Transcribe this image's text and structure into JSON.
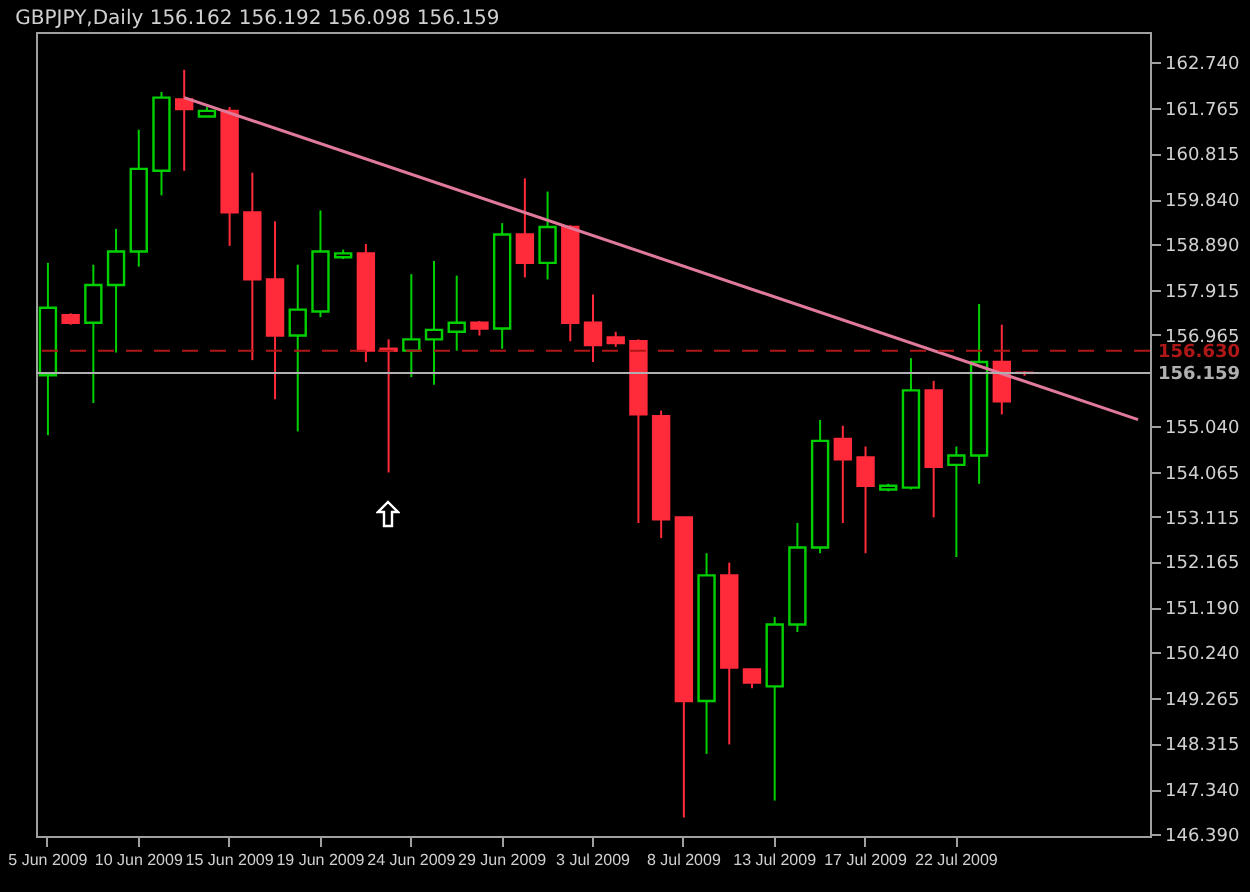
{
  "chart_data": {
    "type": "candlestick",
    "title": "GBPJPY,Daily 156.162 156.192 156.098 156.159",
    "categories": [
      "5 Jun 2009",
      null,
      null,
      null,
      "10 Jun 2009",
      null,
      null,
      null,
      "15 Jun 2009",
      null,
      null,
      null,
      "19 Jun 2009",
      null,
      null,
      null,
      "24 Jun 2009",
      null,
      null,
      null,
      "29 Jun 2009",
      null,
      null,
      null,
      "3 Jul 2009",
      null,
      null,
      null,
      "8 Jul 2009",
      null,
      null,
      null,
      "13 Jul 2009",
      null,
      null,
      null,
      "17 Jul 2009",
      null,
      null,
      null,
      "22 Jul 2009",
      null,
      null,
      null,
      null,
      null,
      null,
      null,
      null
    ],
    "ohlc": [
      [
        156.11,
        158.49,
        154.84,
        157.54
      ],
      [
        157.38,
        157.42,
        157.18,
        157.22
      ],
      [
        157.22,
        158.45,
        155.52,
        158.02
      ],
      [
        158.02,
        159.21,
        156.59,
        158.73
      ],
      [
        158.73,
        161.31,
        158.41,
        160.48
      ],
      [
        160.44,
        162.11,
        159.92,
        161.99
      ],
      [
        161.95,
        162.58,
        160.44,
        161.75
      ],
      [
        161.59,
        161.79,
        161.59,
        161.71
      ],
      [
        161.71,
        161.79,
        158.85,
        159.56
      ],
      [
        159.56,
        160.4,
        156.43,
        158.14
      ],
      [
        158.14,
        159.37,
        155.6,
        156.95
      ],
      [
        156.95,
        158.45,
        154.92,
        157.5
      ],
      [
        157.46,
        159.6,
        157.34,
        158.73
      ],
      [
        158.61,
        158.77,
        158.57,
        158.69
      ],
      [
        158.69,
        158.89,
        156.39,
        156.63
      ],
      [
        156.67,
        156.87,
        154.05,
        156.63
      ],
      [
        156.63,
        158.25,
        156.07,
        156.87
      ],
      [
        156.87,
        158.53,
        155.91,
        157.07
      ],
      [
        157.03,
        158.22,
        156.63,
        157.22
      ],
      [
        157.22,
        157.26,
        156.95,
        157.1
      ],
      [
        157.1,
        159.33,
        156.67,
        159.09
      ],
      [
        159.09,
        160.28,
        158.18,
        158.49
      ],
      [
        158.49,
        160.0,
        158.14,
        159.25
      ],
      [
        159.25,
        159.29,
        156.83,
        157.22
      ],
      [
        157.22,
        157.82,
        156.39,
        156.75
      ],
      [
        156.91,
        157.03,
        156.71,
        156.79
      ],
      [
        156.83,
        156.87,
        152.98,
        155.28
      ],
      [
        155.24,
        155.36,
        152.66,
        153.06
      ],
      [
        153.1,
        153.1,
        146.74,
        149.21
      ],
      [
        149.21,
        152.34,
        148.09,
        151.87
      ],
      [
        151.87,
        152.14,
        148.29,
        149.92
      ],
      [
        149.88,
        149.88,
        149.48,
        149.6
      ],
      [
        149.52,
        150.99,
        147.1,
        150.83
      ],
      [
        150.83,
        152.98,
        150.67,
        152.46
      ],
      [
        152.46,
        155.16,
        152.34,
        154.72
      ],
      [
        154.76,
        155.04,
        152.98,
        154.33
      ],
      [
        154.37,
        154.6,
        152.34,
        153.77
      ],
      [
        153.69,
        153.81,
        153.65,
        153.77
      ],
      [
        153.73,
        156.47,
        153.69,
        155.79
      ],
      [
        155.79,
        155.99,
        153.1,
        154.17
      ],
      [
        154.21,
        154.6,
        152.26,
        154.41
      ],
      [
        154.41,
        157.62,
        153.81,
        156.39
      ],
      [
        156.39,
        157.18,
        155.28,
        155.56
      ],
      [
        156.162,
        156.192,
        156.098,
        156.159
      ],
      null,
      null,
      null,
      null,
      null
    ],
    "colors": [
      "#00d000",
      "#ff2a3a",
      "#00d000",
      "#00d000",
      "#00d000",
      "#00d000",
      "#ff2a3a",
      "#00d000",
      "#ff2a3a",
      "#ff2a3a",
      "#ff2a3a",
      "#00d000",
      "#00d000",
      "#00d000",
      "#ff2a3a",
      "#ff2a3a",
      "#00d000",
      "#00d000",
      "#00d000",
      "#ff2a3a",
      "#00d000",
      "#ff2a3a",
      "#00d000",
      "#ff2a3a",
      "#ff2a3a",
      "#ff2a3a",
      "#ff2a3a",
      "#ff2a3a",
      "#ff2a3a",
      "#00d000",
      "#ff2a3a",
      "#ff2a3a",
      "#00d000",
      "#00d000",
      "#00d000",
      "#ff2a3a",
      "#ff2a3a",
      "#00d000",
      "#00d000",
      "#ff2a3a",
      "#00d000",
      "#00d000",
      "#ff2a3a",
      "#ff2a3a",
      null,
      null,
      null,
      null,
      null
    ],
    "series": [
      {
        "type": "line",
        "color": "#e07a9a",
        "values": [
          null,
          null,
          null,
          null,
          null,
          null,
          161.99,
          null,
          null,
          null,
          null,
          null,
          null,
          null,
          null,
          null,
          null,
          null,
          null,
          null,
          null,
          null,
          null,
          null,
          null,
          null,
          null,
          null,
          null,
          null,
          null,
          null,
          null,
          null,
          null,
          null,
          null,
          null,
          null,
          null,
          null,
          null,
          null,
          null,
          null,
          null,
          null,
          null,
          155.17
        ]
      }
    ],
    "ylim": [
      146.35,
      163.38
    ],
    "yticks": [
      {
        "value": 162.74,
        "label": "162.740"
      },
      {
        "value": 161.765,
        "label": "161.765"
      },
      {
        "value": 160.815,
        "label": "160.815"
      },
      {
        "value": 159.84,
        "label": "159.840"
      },
      {
        "value": 158.89,
        "label": "158.890"
      },
      {
        "value": 157.915,
        "label": "157.915"
      },
      {
        "value": 156.965,
        "label": "156.965"
      },
      {
        "value": 155.04,
        "label": "155.040"
      },
      {
        "value": 154.065,
        "label": "154.065"
      },
      {
        "value": 153.115,
        "label": "153.115"
      },
      {
        "value": 152.165,
        "label": "152.165"
      },
      {
        "value": 151.19,
        "label": "151.190"
      },
      {
        "value": 150.24,
        "label": "150.240"
      },
      {
        "value": 149.265,
        "label": "149.265"
      },
      {
        "value": 148.315,
        "label": "148.315"
      },
      {
        "value": 147.34,
        "label": "147.340"
      },
      {
        "value": 146.39,
        "label": "146.390"
      }
    ],
    "ref_lines": [
      {
        "axis": "y",
        "value": 156.63,
        "label": "156.630",
        "color": "#b01818",
        "line_style": "dashed"
      },
      {
        "axis": "y",
        "value": 156.159,
        "label": "156.159",
        "color": "#b0b0b0",
        "line_style": "solid"
      }
    ],
    "grid": false
  }
}
